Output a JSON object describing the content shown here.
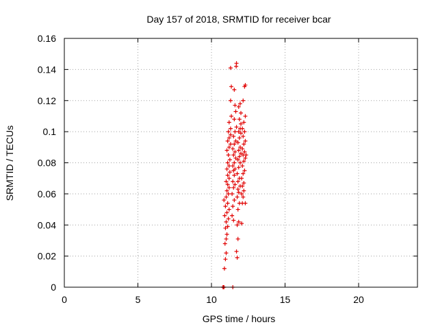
{
  "chart_data": {
    "type": "scatter",
    "title": "Day 157 of 2018, SRMTID for receiver bcar",
    "xlabel": "GPS time / hours",
    "ylabel": "SRMTID / TECUs",
    "xlim": [
      0,
      24
    ],
    "ylim": [
      0,
      0.16
    ],
    "xticks": [
      0,
      5,
      10,
      15,
      20
    ],
    "xtick_labels": [
      "0",
      "5",
      "10",
      "15",
      "20"
    ],
    "yticks": [
      0,
      0.02,
      0.04,
      0.06,
      0.08,
      0.1,
      0.12,
      0.14,
      0.16
    ],
    "ytick_labels": [
      "0",
      "0.02",
      "0.04",
      "0.06",
      "0.08",
      "0.1",
      "0.12",
      "0.14",
      "0.16"
    ],
    "grid": true,
    "marker": "+",
    "series": [
      {
        "name": "bcar",
        "color": "#e00000",
        "points": [
          [
            10.78,
            0.0
          ],
          [
            10.8,
            0.0
          ],
          [
            10.83,
            0.0
          ],
          [
            10.85,
            0.0
          ],
          [
            11.45,
            0.0
          ],
          [
            10.88,
            0.012
          ],
          [
            10.95,
            0.018
          ],
          [
            11.0,
            0.022
          ],
          [
            10.92,
            0.028
          ],
          [
            11.0,
            0.031
          ],
          [
            11.05,
            0.034
          ],
          [
            10.95,
            0.038
          ],
          [
            11.1,
            0.039
          ],
          [
            11.0,
            0.042
          ],
          [
            11.15,
            0.044
          ],
          [
            10.9,
            0.046
          ],
          [
            11.05,
            0.048
          ],
          [
            11.2,
            0.05
          ],
          [
            10.95,
            0.052
          ],
          [
            11.1,
            0.054
          ],
          [
            10.85,
            0.056
          ],
          [
            11.0,
            0.058
          ],
          [
            11.15,
            0.06
          ],
          [
            11.05,
            0.062
          ],
          [
            11.2,
            0.064
          ],
          [
            11.1,
            0.066
          ],
          [
            11.0,
            0.068
          ],
          [
            11.2,
            0.07
          ],
          [
            11.1,
            0.072
          ],
          [
            11.25,
            0.074
          ],
          [
            11.05,
            0.076
          ],
          [
            11.2,
            0.078
          ],
          [
            11.1,
            0.08
          ],
          [
            11.25,
            0.082
          ],
          [
            11.15,
            0.085
          ],
          [
            11.05,
            0.088
          ],
          [
            11.2,
            0.09
          ],
          [
            11.3,
            0.092
          ],
          [
            11.1,
            0.094
          ],
          [
            11.2,
            0.096
          ],
          [
            11.3,
            0.098
          ],
          [
            11.15,
            0.1
          ],
          [
            11.3,
            0.102
          ],
          [
            11.2,
            0.106
          ],
          [
            11.35,
            0.11
          ],
          [
            11.3,
            0.12
          ],
          [
            11.35,
            0.129
          ],
          [
            11.3,
            0.141
          ],
          [
            11.4,
            0.046
          ],
          [
            11.5,
            0.043
          ],
          [
            11.45,
            0.052
          ],
          [
            11.55,
            0.056
          ],
          [
            11.4,
            0.06
          ],
          [
            11.5,
            0.064
          ],
          [
            11.6,
            0.066
          ],
          [
            11.45,
            0.068
          ],
          [
            11.55,
            0.072
          ],
          [
            11.5,
            0.075
          ],
          [
            11.6,
            0.076
          ],
          [
            11.45,
            0.078
          ],
          [
            11.55,
            0.08
          ],
          [
            11.65,
            0.083
          ],
          [
            11.5,
            0.085
          ],
          [
            11.6,
            0.087
          ],
          [
            11.45,
            0.089
          ],
          [
            11.55,
            0.092
          ],
          [
            11.65,
            0.094
          ],
          [
            11.5,
            0.097
          ],
          [
            11.6,
            0.1
          ],
          [
            11.7,
            0.103
          ],
          [
            11.55,
            0.108
          ],
          [
            11.65,
            0.113
          ],
          [
            11.6,
            0.117
          ],
          [
            11.55,
            0.127
          ],
          [
            11.68,
            0.142
          ],
          [
            11.7,
            0.144
          ],
          [
            11.7,
            0.023
          ],
          [
            11.75,
            0.019
          ],
          [
            11.8,
            0.031
          ],
          [
            11.75,
            0.04
          ],
          [
            11.85,
            0.042
          ],
          [
            11.8,
            0.05
          ],
          [
            11.9,
            0.054
          ],
          [
            11.75,
            0.058
          ],
          [
            11.85,
            0.061
          ],
          [
            11.8,
            0.063
          ],
          [
            11.95,
            0.065
          ],
          [
            11.8,
            0.068
          ],
          [
            11.9,
            0.07
          ],
          [
            11.75,
            0.073
          ],
          [
            11.85,
            0.077
          ],
          [
            11.95,
            0.08
          ],
          [
            11.8,
            0.082
          ],
          [
            11.9,
            0.084
          ],
          [
            12.0,
            0.086
          ],
          [
            11.85,
            0.088
          ],
          [
            11.95,
            0.09
          ],
          [
            11.8,
            0.093
          ],
          [
            11.9,
            0.096
          ],
          [
            12.0,
            0.099
          ],
          [
            11.85,
            0.1
          ],
          [
            11.95,
            0.102
          ],
          [
            12.0,
            0.105
          ],
          [
            11.9,
            0.108
          ],
          [
            12.0,
            0.112
          ],
          [
            11.85,
            0.116
          ],
          [
            11.95,
            0.118
          ],
          [
            12.05,
            0.041
          ],
          [
            12.1,
            0.054
          ],
          [
            12.15,
            0.058
          ],
          [
            12.05,
            0.06
          ],
          [
            12.2,
            0.062
          ],
          [
            12.1,
            0.065
          ],
          [
            12.2,
            0.067
          ],
          [
            12.05,
            0.07
          ],
          [
            12.15,
            0.073
          ],
          [
            12.25,
            0.075
          ],
          [
            12.1,
            0.078
          ],
          [
            12.2,
            0.081
          ],
          [
            12.3,
            0.083
          ],
          [
            12.15,
            0.085
          ],
          [
            12.25,
            0.087
          ],
          [
            12.1,
            0.089
          ],
          [
            12.2,
            0.092
          ],
          [
            12.3,
            0.094
          ],
          [
            12.15,
            0.097
          ],
          [
            12.25,
            0.1
          ],
          [
            12.1,
            0.102
          ],
          [
            12.2,
            0.106
          ],
          [
            12.3,
            0.11
          ],
          [
            12.15,
            0.12
          ],
          [
            12.25,
            0.129
          ],
          [
            12.3,
            0.13
          ],
          [
            12.3,
            0.054
          ],
          [
            12.35,
            0.085
          ]
        ]
      }
    ]
  }
}
